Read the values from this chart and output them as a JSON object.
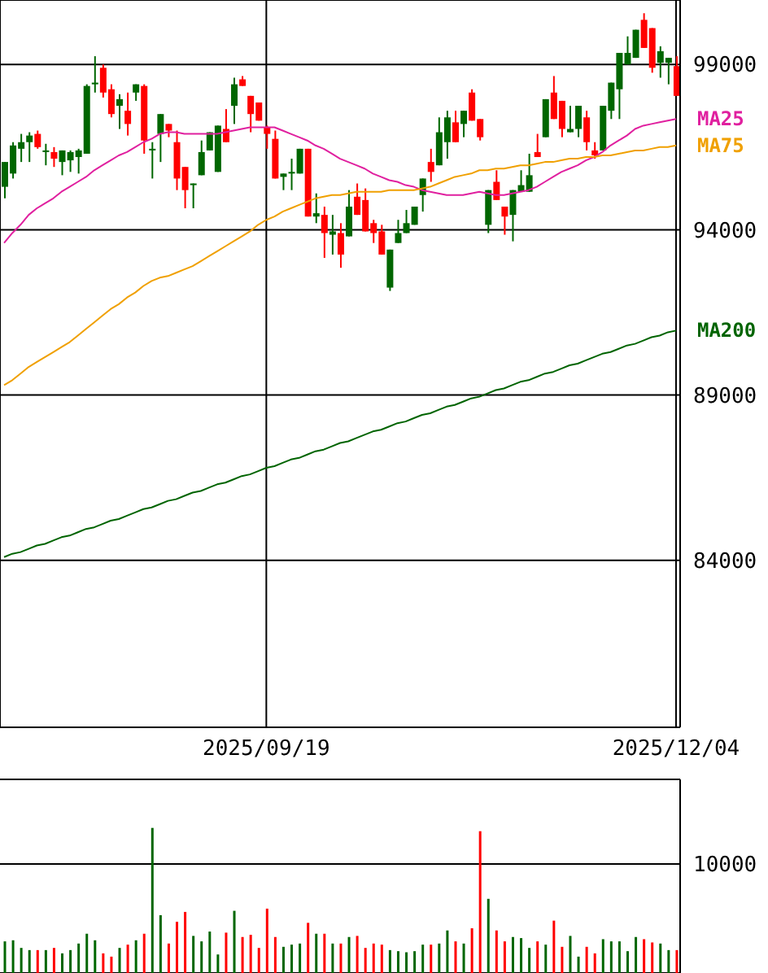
{
  "chart_data": [
    {
      "type": "candlestick",
      "categories": [
        null,
        null,
        null,
        null,
        null,
        null,
        null,
        null,
        null,
        null,
        null,
        null,
        null,
        null,
        null,
        null,
        null,
        null,
        null,
        null,
        null,
        null,
        null,
        null,
        null,
        null,
        null,
        null,
        null,
        null,
        null,
        null,
        "2025/09/19",
        null,
        null,
        null,
        null,
        null,
        null,
        null,
        null,
        null,
        null,
        null,
        null,
        null,
        null,
        null,
        null,
        null,
        null,
        null,
        null,
        null,
        null,
        null,
        null,
        null,
        null,
        null,
        null,
        null,
        null,
        null,
        null,
        null,
        null,
        null,
        null,
        null,
        null,
        null,
        null,
        null,
        null,
        null,
        null,
        null,
        null,
        null,
        null,
        null,
        "2025/12/04"
      ],
      "ohlc": [
        [
          95300,
          96050,
          94950,
          96050
        ],
        [
          95700,
          96650,
          95550,
          96550
        ],
        [
          96450,
          96900,
          96050,
          96650
        ],
        [
          96650,
          96950,
          96050,
          96850
        ],
        [
          96900,
          97000,
          96450,
          96500
        ],
        [
          96350,
          96600,
          95950,
          96400
        ],
        [
          96350,
          96500,
          95900,
          96150
        ],
        [
          96050,
          96400,
          95650,
          96400
        ],
        [
          96100,
          96400,
          95750,
          96350
        ],
        [
          96200,
          96450,
          95700,
          96400
        ],
        [
          96300,
          98400,
          96300,
          98350
        ],
        [
          98400,
          99250,
          98150,
          98450
        ],
        [
          98900,
          99000,
          98000,
          98150
        ],
        [
          98250,
          98400,
          97400,
          97500
        ],
        [
          97750,
          98100,
          97050,
          97950
        ],
        [
          97600,
          98150,
          96850,
          97200
        ],
        [
          98150,
          98400,
          97900,
          98400
        ],
        [
          98350,
          98400,
          96300,
          96700
        ],
        [
          96400,
          96650,
          95550,
          96450
        ],
        [
          96900,
          97500,
          96050,
          97500
        ],
        [
          97200,
          97200,
          96800,
          97000
        ],
        [
          96650,
          97000,
          95200,
          95550
        ],
        [
          95900,
          95900,
          94650,
          95200
        ],
        [
          95350,
          95400,
          94650,
          95400
        ],
        [
          95650,
          96700,
          95650,
          96350
        ],
        [
          96400,
          96950,
          96400,
          96950
        ],
        [
          95750,
          97150,
          95750,
          97150
        ],
        [
          97050,
          97650,
          96650,
          96650
        ],
        [
          97750,
          98600,
          97200,
          98400
        ],
        [
          98550,
          98650,
          98350,
          98350
        ],
        [
          98050,
          98050,
          96950,
          97500
        ],
        [
          97850,
          97850,
          97300,
          97300
        ],
        [
          97100,
          97150,
          96450,
          96900
        ],
        [
          96750,
          97000,
          95550,
          95550
        ],
        [
          95600,
          95700,
          95200,
          95700
        ],
        [
          95700,
          96150,
          95200,
          95750
        ],
        [
          95700,
          96450,
          95700,
          96450
        ],
        [
          96450,
          96450,
          94400,
          94400
        ],
        [
          94400,
          95100,
          94200,
          94500
        ],
        [
          94450,
          94700,
          93150,
          93900
        ],
        [
          93850,
          94450,
          93250,
          93950
        ],
        [
          93900,
          94200,
          92850,
          93250
        ],
        [
          93800,
          95200,
          93800,
          94700
        ],
        [
          95000,
          95400,
          94450,
          94450
        ],
        [
          94900,
          95250,
          93950,
          93950
        ],
        [
          94200,
          94300,
          93600,
          93900
        ],
        [
          93950,
          94150,
          93250,
          93250
        ],
        [
          92250,
          93400,
          92150,
          93400
        ],
        [
          93600,
          94300,
          93600,
          93900
        ],
        [
          93900,
          94600,
          93900,
          94200
        ],
        [
          94150,
          94700,
          94150,
          94700
        ],
        [
          95050,
          95550,
          94550,
          95550
        ],
        [
          96050,
          96450,
          95450,
          95750
        ],
        [
          95950,
          97400,
          95950,
          96950
        ],
        [
          96650,
          97600,
          96150,
          97400
        ],
        [
          97250,
          97600,
          96650,
          96650
        ],
        [
          97200,
          97600,
          96800,
          97600
        ],
        [
          98150,
          98250,
          97300,
          97300
        ],
        [
          97350,
          97350,
          96700,
          96800
        ],
        [
          94150,
          95200,
          93900,
          95200
        ],
        [
          95450,
          95800,
          94900,
          94900
        ],
        [
          94700,
          94700,
          93850,
          94400
        ],
        [
          94450,
          95200,
          93650,
          95200
        ],
        [
          95150,
          95800,
          95150,
          95350
        ],
        [
          95150,
          96300,
          95150,
          95650
        ],
        [
          96350,
          96900,
          96200,
          96200
        ],
        [
          96800,
          97950,
          96800,
          97950
        ],
        [
          98150,
          98650,
          97350,
          97350
        ],
        [
          97900,
          97900,
          96800,
          97050
        ],
        [
          96950,
          97750,
          96950,
          97050
        ],
        [
          97050,
          97750,
          96800,
          97750
        ],
        [
          97400,
          97600,
          96400,
          96650
        ],
        [
          96400,
          96650,
          96150,
          96250
        ],
        [
          96400,
          97750,
          96400,
          97750
        ],
        [
          97600,
          98450,
          97350,
          98450
        ],
        [
          98250,
          99350,
          97350,
          99350
        ],
        [
          99000,
          99850,
          99000,
          99350
        ],
        [
          99200,
          100050,
          99200,
          100050
        ],
        [
          100350,
          100550,
          99500,
          99500
        ],
        [
          100100,
          100100,
          98750,
          98900
        ],
        [
          99050,
          99550,
          98600,
          99400
        ],
        [
          99050,
          99200,
          98400,
          99200
        ],
        [
          98950,
          99250,
          98050,
          98050
        ]
      ],
      "colors": [
        "#006600",
        "#006600",
        "#006600",
        "#006600",
        "#ff0000",
        "#006600",
        "#ff0000",
        "#006600",
        "#006600",
        "#006600",
        "#006600",
        "#006600",
        "#ff0000",
        "#ff0000",
        "#006600",
        "#ff0000",
        "#006600",
        "#ff0000",
        "#006600",
        "#006600",
        "#ff0000",
        "#ff0000",
        "#ff0000",
        "#006600",
        "#006600",
        "#006600",
        "#006600",
        "#ff0000",
        "#006600",
        "#ff0000",
        "#ff0000",
        "#ff0000",
        "#ff0000",
        "#ff0000",
        "#006600",
        "#006600",
        "#006600",
        "#ff0000",
        "#006600",
        "#ff0000",
        "#006600",
        "#ff0000",
        "#006600",
        "#ff0000",
        "#ff0000",
        "#ff0000",
        "#ff0000",
        "#006600",
        "#006600",
        "#006600",
        "#006600",
        "#006600",
        "#ff0000",
        "#006600",
        "#006600",
        "#ff0000",
        "#006600",
        "#ff0000",
        "#ff0000",
        "#006600",
        "#ff0000",
        "#ff0000",
        "#006600",
        "#006600",
        "#006600",
        "#ff0000",
        "#006600",
        "#ff0000",
        "#ff0000",
        "#006600",
        "#006600",
        "#ff0000",
        "#ff0000",
        "#006600",
        "#006600",
        "#006600",
        "#006600",
        "#006600",
        "#ff0000",
        "#ff0000",
        "#006600",
        "#006600",
        "#ff0000"
      ],
      "series": [
        {
          "name": "MA25",
          "type": "line",
          "color": "#e0209f",
          "values": [
            93600,
            93900,
            94150,
            94450,
            94650,
            94800,
            94950,
            95150,
            95300,
            95450,
            95600,
            95800,
            95950,
            96100,
            96250,
            96350,
            96500,
            96650,
            96750,
            96900,
            96950,
            96950,
            96900,
            96900,
            96900,
            96900,
            96900,
            96950,
            97000,
            97050,
            97100,
            97100,
            97100,
            97100,
            97000,
            96900,
            96800,
            96700,
            96550,
            96450,
            96300,
            96150,
            96050,
            95950,
            95850,
            95700,
            95600,
            95500,
            95450,
            95350,
            95300,
            95200,
            95150,
            95100,
            95050,
            95050,
            95050,
            95100,
            95150,
            95100,
            95050,
            95050,
            95100,
            95150,
            95200,
            95300,
            95450,
            95600,
            95750,
            95850,
            95950,
            96100,
            96200,
            96350,
            96550,
            96700,
            96850,
            97050,
            97150,
            97200,
            97250,
            97300,
            97350
          ]
        },
        {
          "name": "MA75",
          "type": "line",
          "color": "#f0a000",
          "values": [
            89300,
            89450,
            89650,
            89850,
            90000,
            90150,
            90300,
            90450,
            90600,
            90800,
            91000,
            91200,
            91400,
            91600,
            91750,
            91950,
            92100,
            92300,
            92450,
            92550,
            92600,
            92700,
            92800,
            92900,
            93050,
            93200,
            93350,
            93500,
            93650,
            93800,
            93950,
            94150,
            94300,
            94400,
            94550,
            94650,
            94750,
            94850,
            94950,
            95000,
            95050,
            95050,
            95100,
            95150,
            95150,
            95150,
            95150,
            95200,
            95200,
            95200,
            95200,
            95250,
            95300,
            95400,
            95500,
            95600,
            95650,
            95700,
            95800,
            95800,
            95850,
            95850,
            95900,
            95950,
            95950,
            96000,
            96050,
            96050,
            96100,
            96150,
            96150,
            96200,
            96200,
            96250,
            96250,
            96300,
            96350,
            96400,
            96400,
            96450,
            96500,
            96500,
            96550
          ]
        },
        {
          "name": "MA200",
          "type": "line",
          "color": "#006400",
          "values": [
            84100,
            84200,
            84250,
            84350,
            84450,
            84500,
            84600,
            84700,
            84750,
            84850,
            84950,
            85000,
            85100,
            85200,
            85250,
            85350,
            85450,
            85550,
            85600,
            85700,
            85800,
            85850,
            85950,
            86050,
            86100,
            86200,
            86300,
            86350,
            86450,
            86550,
            86600,
            86700,
            86800,
            86850,
            86950,
            87050,
            87100,
            87200,
            87300,
            87350,
            87450,
            87550,
            87600,
            87700,
            87800,
            87900,
            87950,
            88050,
            88150,
            88200,
            88300,
            88400,
            88450,
            88550,
            88650,
            88700,
            88800,
            88900,
            88950,
            89050,
            89150,
            89200,
            89300,
            89400,
            89450,
            89550,
            89650,
            89700,
            89800,
            89900,
            89950,
            90050,
            90150,
            90250,
            90300,
            90400,
            90500,
            90550,
            90650,
            90750,
            90800,
            90900,
            90950
          ]
        }
      ],
      "ylim": [
        78950,
        100950
      ],
      "yticks": [
        84000,
        89000,
        94000,
        99000
      ],
      "grid": true
    },
    {
      "type": "bar",
      "categories": [
        null,
        null,
        null,
        null,
        null,
        null,
        null,
        null,
        null,
        null,
        null,
        null,
        null,
        null,
        null,
        null,
        null,
        null,
        null,
        null,
        null,
        null,
        null,
        null,
        null,
        null,
        null,
        null,
        null,
        null,
        null,
        null,
        "2025/09/19",
        null,
        null,
        null,
        null,
        null,
        null,
        null,
        null,
        null,
        null,
        null,
        null,
        null,
        null,
        null,
        null,
        null,
        null,
        null,
        null,
        null,
        null,
        null,
        null,
        null,
        null,
        null,
        null,
        null,
        null,
        null,
        null,
        null,
        null,
        null,
        null,
        null,
        null,
        null,
        null,
        null,
        null,
        null,
        null,
        null,
        null,
        null,
        null,
        null,
        "2025/12/04"
      ],
      "values": [
        2900,
        3000,
        2300,
        2100,
        2100,
        2100,
        2300,
        1800,
        2100,
        2700,
        3600,
        3000,
        1800,
        1500,
        2300,
        2600,
        3000,
        3600,
        13300,
        5300,
        2700,
        4700,
        5600,
        3400,
        2900,
        3800,
        1700,
        3700,
        5700,
        3300,
        3500,
        2300,
        5900,
        3300,
        2400,
        2600,
        2700,
        4600,
        3600,
        3600,
        2700,
        2700,
        3300,
        3400,
        2300,
        2700,
        2600,
        2100,
        2000,
        1900,
        2000,
        2600,
        2600,
        2700,
        3900,
        2900,
        2700,
        4100,
        13000,
        6800,
        3900,
        2900,
        3300,
        3200,
        2300,
        2900,
        2600,
        4800,
        2400,
        3400,
        1500,
        2400,
        1800,
        3100,
        2900,
        2900,
        2000,
        3300,
        3100,
        2800,
        2700,
        2100,
        2100
      ],
      "colors": [
        "#006600",
        "#006600",
        "#006600",
        "#006600",
        "#ff0000",
        "#006600",
        "#ff0000",
        "#006600",
        "#006600",
        "#006600",
        "#006600",
        "#006600",
        "#ff0000",
        "#ff0000",
        "#006600",
        "#ff0000",
        "#006600",
        "#ff0000",
        "#006600",
        "#006600",
        "#ff0000",
        "#ff0000",
        "#ff0000",
        "#006600",
        "#006600",
        "#006600",
        "#006600",
        "#ff0000",
        "#006600",
        "#ff0000",
        "#ff0000",
        "#ff0000",
        "#ff0000",
        "#ff0000",
        "#006600",
        "#006600",
        "#006600",
        "#ff0000",
        "#006600",
        "#ff0000",
        "#006600",
        "#ff0000",
        "#006600",
        "#ff0000",
        "#ff0000",
        "#ff0000",
        "#ff0000",
        "#006600",
        "#006600",
        "#006600",
        "#006600",
        "#006600",
        "#ff0000",
        "#006600",
        "#006600",
        "#ff0000",
        "#006600",
        "#ff0000",
        "#ff0000",
        "#006600",
        "#ff0000",
        "#ff0000",
        "#006600",
        "#006600",
        "#006600",
        "#ff0000",
        "#006600",
        "#ff0000",
        "#ff0000",
        "#006600",
        "#006600",
        "#ff0000",
        "#ff0000",
        "#006600",
        "#006600",
        "#006600",
        "#006600",
        "#006600",
        "#ff0000",
        "#ff0000",
        "#006600",
        "#006600",
        "#ff0000"
      ],
      "ylim": [
        0,
        17750
      ],
      "yticks": [
        10000
      ],
      "grid": "y",
      "tick_labels": "y"
    }
  ]
}
